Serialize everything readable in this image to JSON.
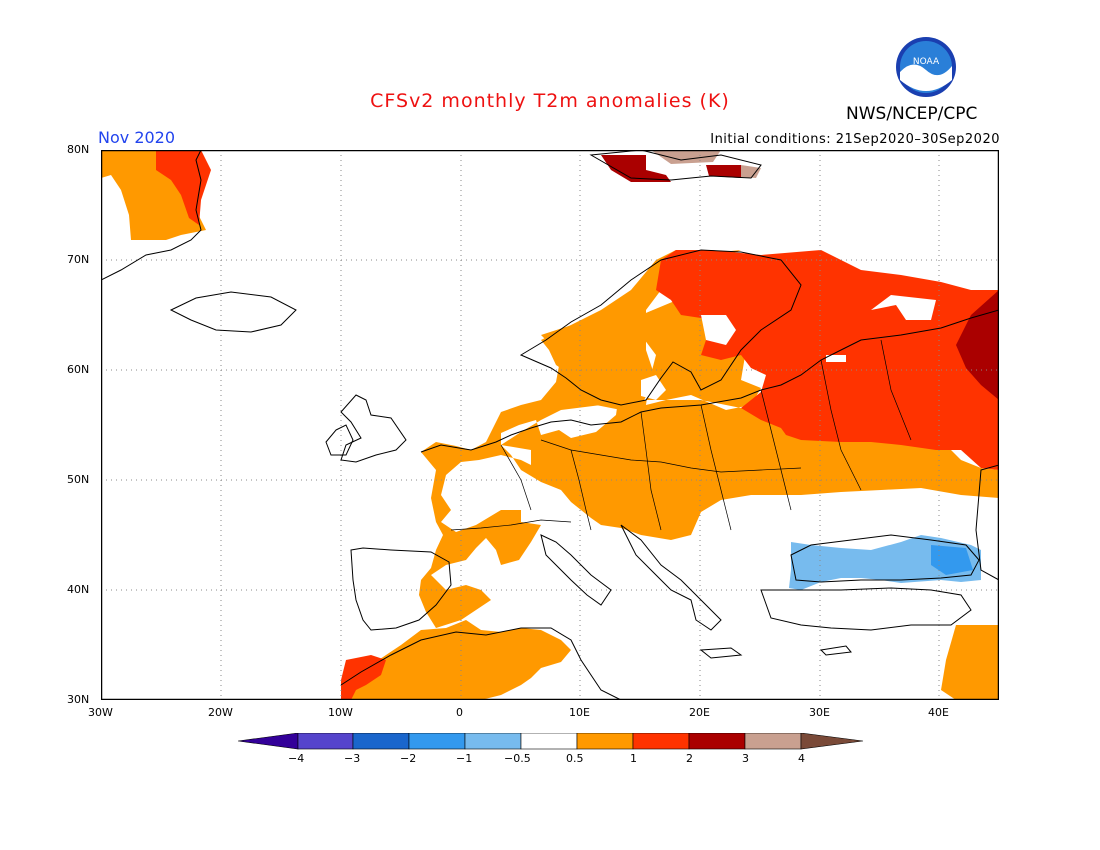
{
  "header": {
    "title": "CFSv2 monthly T2m anomalies (K)",
    "agency": "NWS/NCEP/CPC",
    "logo_text": "NOAA",
    "valid_month": "Nov 2020",
    "initial_conditions": "Initial conditions: 21Sep2020–30Sep2020"
  },
  "map": {
    "lon_range": [
      -30,
      45
    ],
    "lat_range": [
      30,
      80
    ],
    "lat_labels": [
      "80N",
      "70N",
      "60N",
      "50N",
      "40N",
      "30N"
    ],
    "lon_labels": [
      "30W",
      "20W",
      "10W",
      "0",
      "10E",
      "20E",
      "30E",
      "40E"
    ],
    "anomaly_regions": [
      {
        "name": "Greenland east coast",
        "level": "0.5-1"
      },
      {
        "name": "Greenland NE interior",
        "level": "1-2"
      },
      {
        "name": "Svalbard",
        "level": "2-3"
      },
      {
        "name": "Scandinavia",
        "level": "0.5-1"
      },
      {
        "name": "Northern Finland / NW Russia",
        "level": "1-2"
      },
      {
        "name": "Ural region",
        "level": "2-3"
      },
      {
        "name": "Central and Western Europe",
        "level": "0.5-1"
      },
      {
        "name": "Iberia and NW Africa",
        "level": "0.5-1"
      },
      {
        "name": "Morocco coast",
        "level": "1-2"
      },
      {
        "name": "Black Sea region",
        "level": "-1 to -0.5"
      },
      {
        "name": "Middle East east edge",
        "level": "0.5-1"
      }
    ]
  },
  "colorbar": {
    "labels": [
      "−4",
      "−3",
      "−2",
      "−1",
      "−0.5",
      "0.5",
      "1",
      "2",
      "3",
      "4"
    ],
    "colors": [
      "#330099",
      "#5544cc",
      "#1a66cc",
      "#3399ee",
      "#77bbee",
      "#ffffff",
      "#ff9900",
      "#ff3300",
      "#aa0000",
      "#c9a090",
      "#7a4a38"
    ]
  }
}
